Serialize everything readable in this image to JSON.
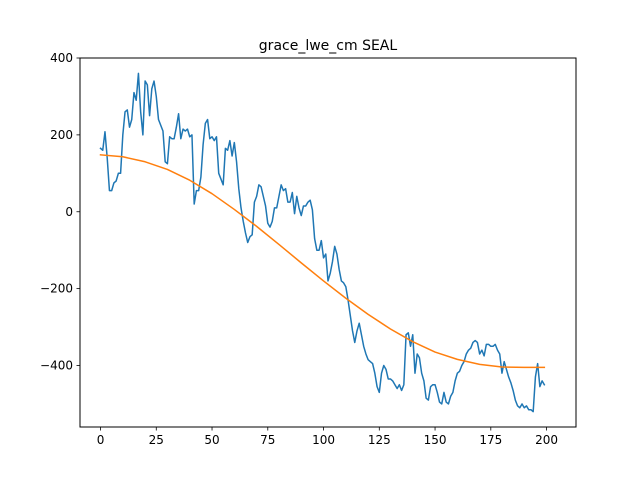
{
  "chart_data": {
    "type": "line",
    "title": "grace_lwe_cm SEAL",
    "xlabel": "",
    "ylabel": "",
    "xlim": [
      -9.2,
      213.2
    ],
    "ylim": [
      -560,
      400
    ],
    "xticks": [
      0,
      25,
      50,
      75,
      100,
      125,
      150,
      175,
      200
    ],
    "yticks": [
      -400,
      -200,
      0,
      200,
      400
    ],
    "ytick_labels": [
      "−400",
      "−200",
      "0",
      "200",
      "400"
    ],
    "grid": false,
    "legend": "none",
    "series": [
      {
        "color": "#1f77b4",
        "points": [
          [
            0,
            165
          ],
          [
            1,
            160
          ],
          [
            2,
            208
          ],
          [
            3,
            140
          ],
          [
            4,
            55
          ],
          [
            5,
            55
          ],
          [
            6,
            75
          ],
          [
            7,
            80
          ],
          [
            8,
            100
          ],
          [
            9,
            100
          ],
          [
            10,
            200
          ],
          [
            11,
            260
          ],
          [
            12,
            265
          ],
          [
            13,
            220
          ],
          [
            14,
            240
          ],
          [
            15,
            310
          ],
          [
            16,
            290
          ],
          [
            17,
            360
          ],
          [
            18,
            260
          ],
          [
            19,
            200
          ],
          [
            20,
            340
          ],
          [
            21,
            330
          ],
          [
            22,
            250
          ],
          [
            23,
            320
          ],
          [
            24,
            340
          ],
          [
            25,
            300
          ],
          [
            26,
            240
          ],
          [
            27,
            225
          ],
          [
            28,
            210
          ],
          [
            29,
            130
          ],
          [
            30,
            125
          ],
          [
            31,
            195
          ],
          [
            32,
            190
          ],
          [
            33,
            190
          ],
          [
            34,
            220
          ],
          [
            35,
            255
          ],
          [
            36,
            190
          ],
          [
            37,
            215
          ],
          [
            38,
            210
          ],
          [
            39,
            215
          ],
          [
            40,
            195
          ],
          [
            41,
            200
          ],
          [
            42,
            20
          ],
          [
            43,
            55
          ],
          [
            44,
            55
          ],
          [
            45,
            90
          ],
          [
            46,
            175
          ],
          [
            47,
            230
          ],
          [
            48,
            240
          ],
          [
            49,
            190
          ],
          [
            50,
            195
          ],
          [
            51,
            185
          ],
          [
            52,
            195
          ],
          [
            53,
            100
          ],
          [
            54,
            85
          ],
          [
            55,
            70
          ],
          [
            56,
            165
          ],
          [
            57,
            160
          ],
          [
            58,
            185
          ],
          [
            59,
            145
          ],
          [
            60,
            180
          ],
          [
            61,
            130
          ],
          [
            62,
            60
          ],
          [
            63,
            10
          ],
          [
            64,
            -25
          ],
          [
            65,
            -55
          ],
          [
            66,
            -80
          ],
          [
            67,
            -65
          ],
          [
            68,
            -60
          ],
          [
            69,
            25
          ],
          [
            70,
            40
          ],
          [
            71,
            70
          ],
          [
            72,
            65
          ],
          [
            73,
            40
          ],
          [
            74,
            15
          ],
          [
            75,
            -30
          ],
          [
            76,
            -40
          ],
          [
            77,
            -25
          ],
          [
            78,
            10
          ],
          [
            79,
            10
          ],
          [
            80,
            40
          ],
          [
            81,
            70
          ],
          [
            82,
            55
          ],
          [
            83,
            60
          ],
          [
            84,
            25
          ],
          [
            85,
            25
          ],
          [
            86,
            50
          ],
          [
            87,
            -5
          ],
          [
            88,
            40
          ],
          [
            89,
            10
          ],
          [
            90,
            -10
          ],
          [
            91,
            15
          ],
          [
            92,
            15
          ],
          [
            93,
            25
          ],
          [
            94,
            30
          ],
          [
            95,
            5
          ],
          [
            96,
            -70
          ],
          [
            97,
            -100
          ],
          [
            98,
            -100
          ],
          [
            99,
            -75
          ],
          [
            100,
            -120
          ],
          [
            101,
            -110
          ],
          [
            102,
            -180
          ],
          [
            103,
            -160
          ],
          [
            104,
            -130
          ],
          [
            105,
            -90
          ],
          [
            106,
            -110
          ],
          [
            107,
            -150
          ],
          [
            108,
            -180
          ],
          [
            109,
            -185
          ],
          [
            110,
            -195
          ],
          [
            111,
            -230
          ],
          [
            112,
            -270
          ],
          [
            113,
            -310
          ],
          [
            114,
            -340
          ],
          [
            115,
            -310
          ],
          [
            116,
            -290
          ],
          [
            117,
            -320
          ],
          [
            118,
            -350
          ],
          [
            119,
            -370
          ],
          [
            120,
            -385
          ],
          [
            121,
            -390
          ],
          [
            122,
            -395
          ],
          [
            123,
            -420
          ],
          [
            124,
            -455
          ],
          [
            125,
            -470
          ],
          [
            126,
            -420
          ],
          [
            127,
            -400
          ],
          [
            128,
            -410
          ],
          [
            129,
            -435
          ],
          [
            130,
            -435
          ],
          [
            131,
            -440
          ],
          [
            132,
            -450
          ],
          [
            133,
            -460
          ],
          [
            134,
            -450
          ],
          [
            135,
            -465
          ],
          [
            136,
            -450
          ],
          [
            137,
            -320
          ],
          [
            138,
            -315
          ],
          [
            139,
            -350
          ],
          [
            140,
            -320
          ],
          [
            141,
            -420
          ],
          [
            142,
            -370
          ],
          [
            143,
            -380
          ],
          [
            144,
            -420
          ],
          [
            145,
            -440
          ],
          [
            146,
            -485
          ],
          [
            147,
            -490
          ],
          [
            148,
            -455
          ],
          [
            149,
            -450
          ],
          [
            150,
            -450
          ],
          [
            151,
            -470
          ],
          [
            152,
            -495
          ],
          [
            153,
            -500
          ],
          [
            154,
            -470
          ],
          [
            155,
            -495
          ],
          [
            156,
            -500
          ],
          [
            157,
            -480
          ],
          [
            158,
            -470
          ],
          [
            159,
            -440
          ],
          [
            160,
            -420
          ],
          [
            161,
            -415
          ],
          [
            162,
            -400
          ],
          [
            163,
            -390
          ],
          [
            164,
            -370
          ],
          [
            165,
            -360
          ],
          [
            166,
            -355
          ],
          [
            167,
            -340
          ],
          [
            168,
            -335
          ],
          [
            169,
            -340
          ],
          [
            170,
            -370
          ],
          [
            171,
            -360
          ],
          [
            172,
            -375
          ],
          [
            173,
            -345
          ],
          [
            174,
            -345
          ],
          [
            175,
            -350
          ],
          [
            176,
            -350
          ],
          [
            177,
            -345
          ],
          [
            178,
            -360
          ],
          [
            179,
            -370
          ],
          [
            180,
            -420
          ],
          [
            181,
            -390
          ],
          [
            182,
            -410
          ],
          [
            183,
            -430
          ],
          [
            184,
            -445
          ],
          [
            185,
            -465
          ],
          [
            186,
            -490
          ],
          [
            187,
            -505
          ],
          [
            188,
            -510
          ],
          [
            189,
            -500
          ],
          [
            190,
            -510
          ],
          [
            191,
            -505
          ],
          [
            192,
            -515
          ],
          [
            193,
            -515
          ],
          [
            194,
            -520
          ],
          [
            195,
            -430
          ],
          [
            196,
            -395
          ],
          [
            197,
            -455
          ],
          [
            198,
            -440
          ],
          [
            199,
            -450
          ]
        ]
      },
      {
        "color": "#ff7f0e",
        "points": [
          [
            0,
            148
          ],
          [
            10,
            143
          ],
          [
            20,
            130
          ],
          [
            30,
            110
          ],
          [
            40,
            82
          ],
          [
            50,
            47
          ],
          [
            60,
            6
          ],
          [
            70,
            -38
          ],
          [
            80,
            -85
          ],
          [
            90,
            -133
          ],
          [
            100,
            -180
          ],
          [
            110,
            -225
          ],
          [
            120,
            -267
          ],
          [
            130,
            -305
          ],
          [
            140,
            -338
          ],
          [
            150,
            -365
          ],
          [
            160,
            -384
          ],
          [
            170,
            -397
          ],
          [
            180,
            -404
          ],
          [
            190,
            -405
          ],
          [
            199,
            -405
          ]
        ]
      }
    ]
  }
}
